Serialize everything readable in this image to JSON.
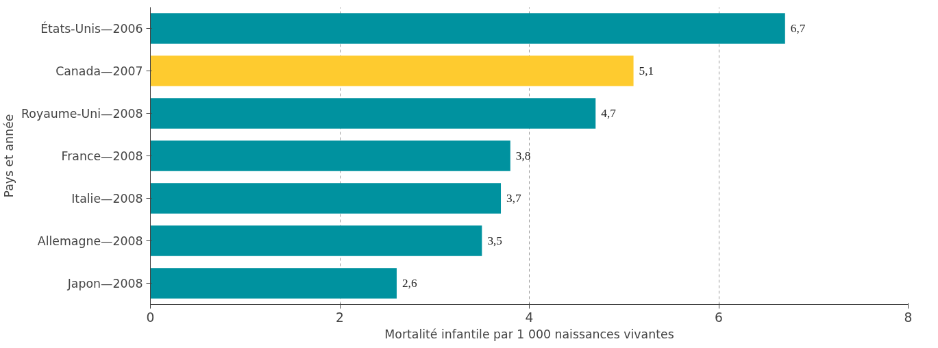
{
  "chart_data": {
    "type": "bar",
    "orientation": "horizontal",
    "xlabel": "Mortalité infantile par 1 000 naissances vivantes",
    "ylabel": "Pays et année",
    "categories": [
      "États-Unis—2006",
      "Canada—2007",
      "Royaume-Uni—2008",
      "France—2008",
      "Italie—2008",
      "Allemagne—2008",
      "Japon—2008"
    ],
    "values": [
      6.7,
      5.1,
      4.7,
      3.8,
      3.7,
      3.5,
      2.6
    ],
    "colors": [
      "#00929f",
      "#fecb2f",
      "#00929f",
      "#00929f",
      "#00929f",
      "#00929f",
      "#00929f"
    ],
    "value_labels": [
      "6,7",
      "5,1",
      "4,7",
      "3,8",
      "3,7",
      "3,5",
      "2,6"
    ],
    "xlim": [
      0,
      8
    ],
    "xticks": [
      0,
      2,
      4,
      6,
      8
    ],
    "grid": "x"
  }
}
